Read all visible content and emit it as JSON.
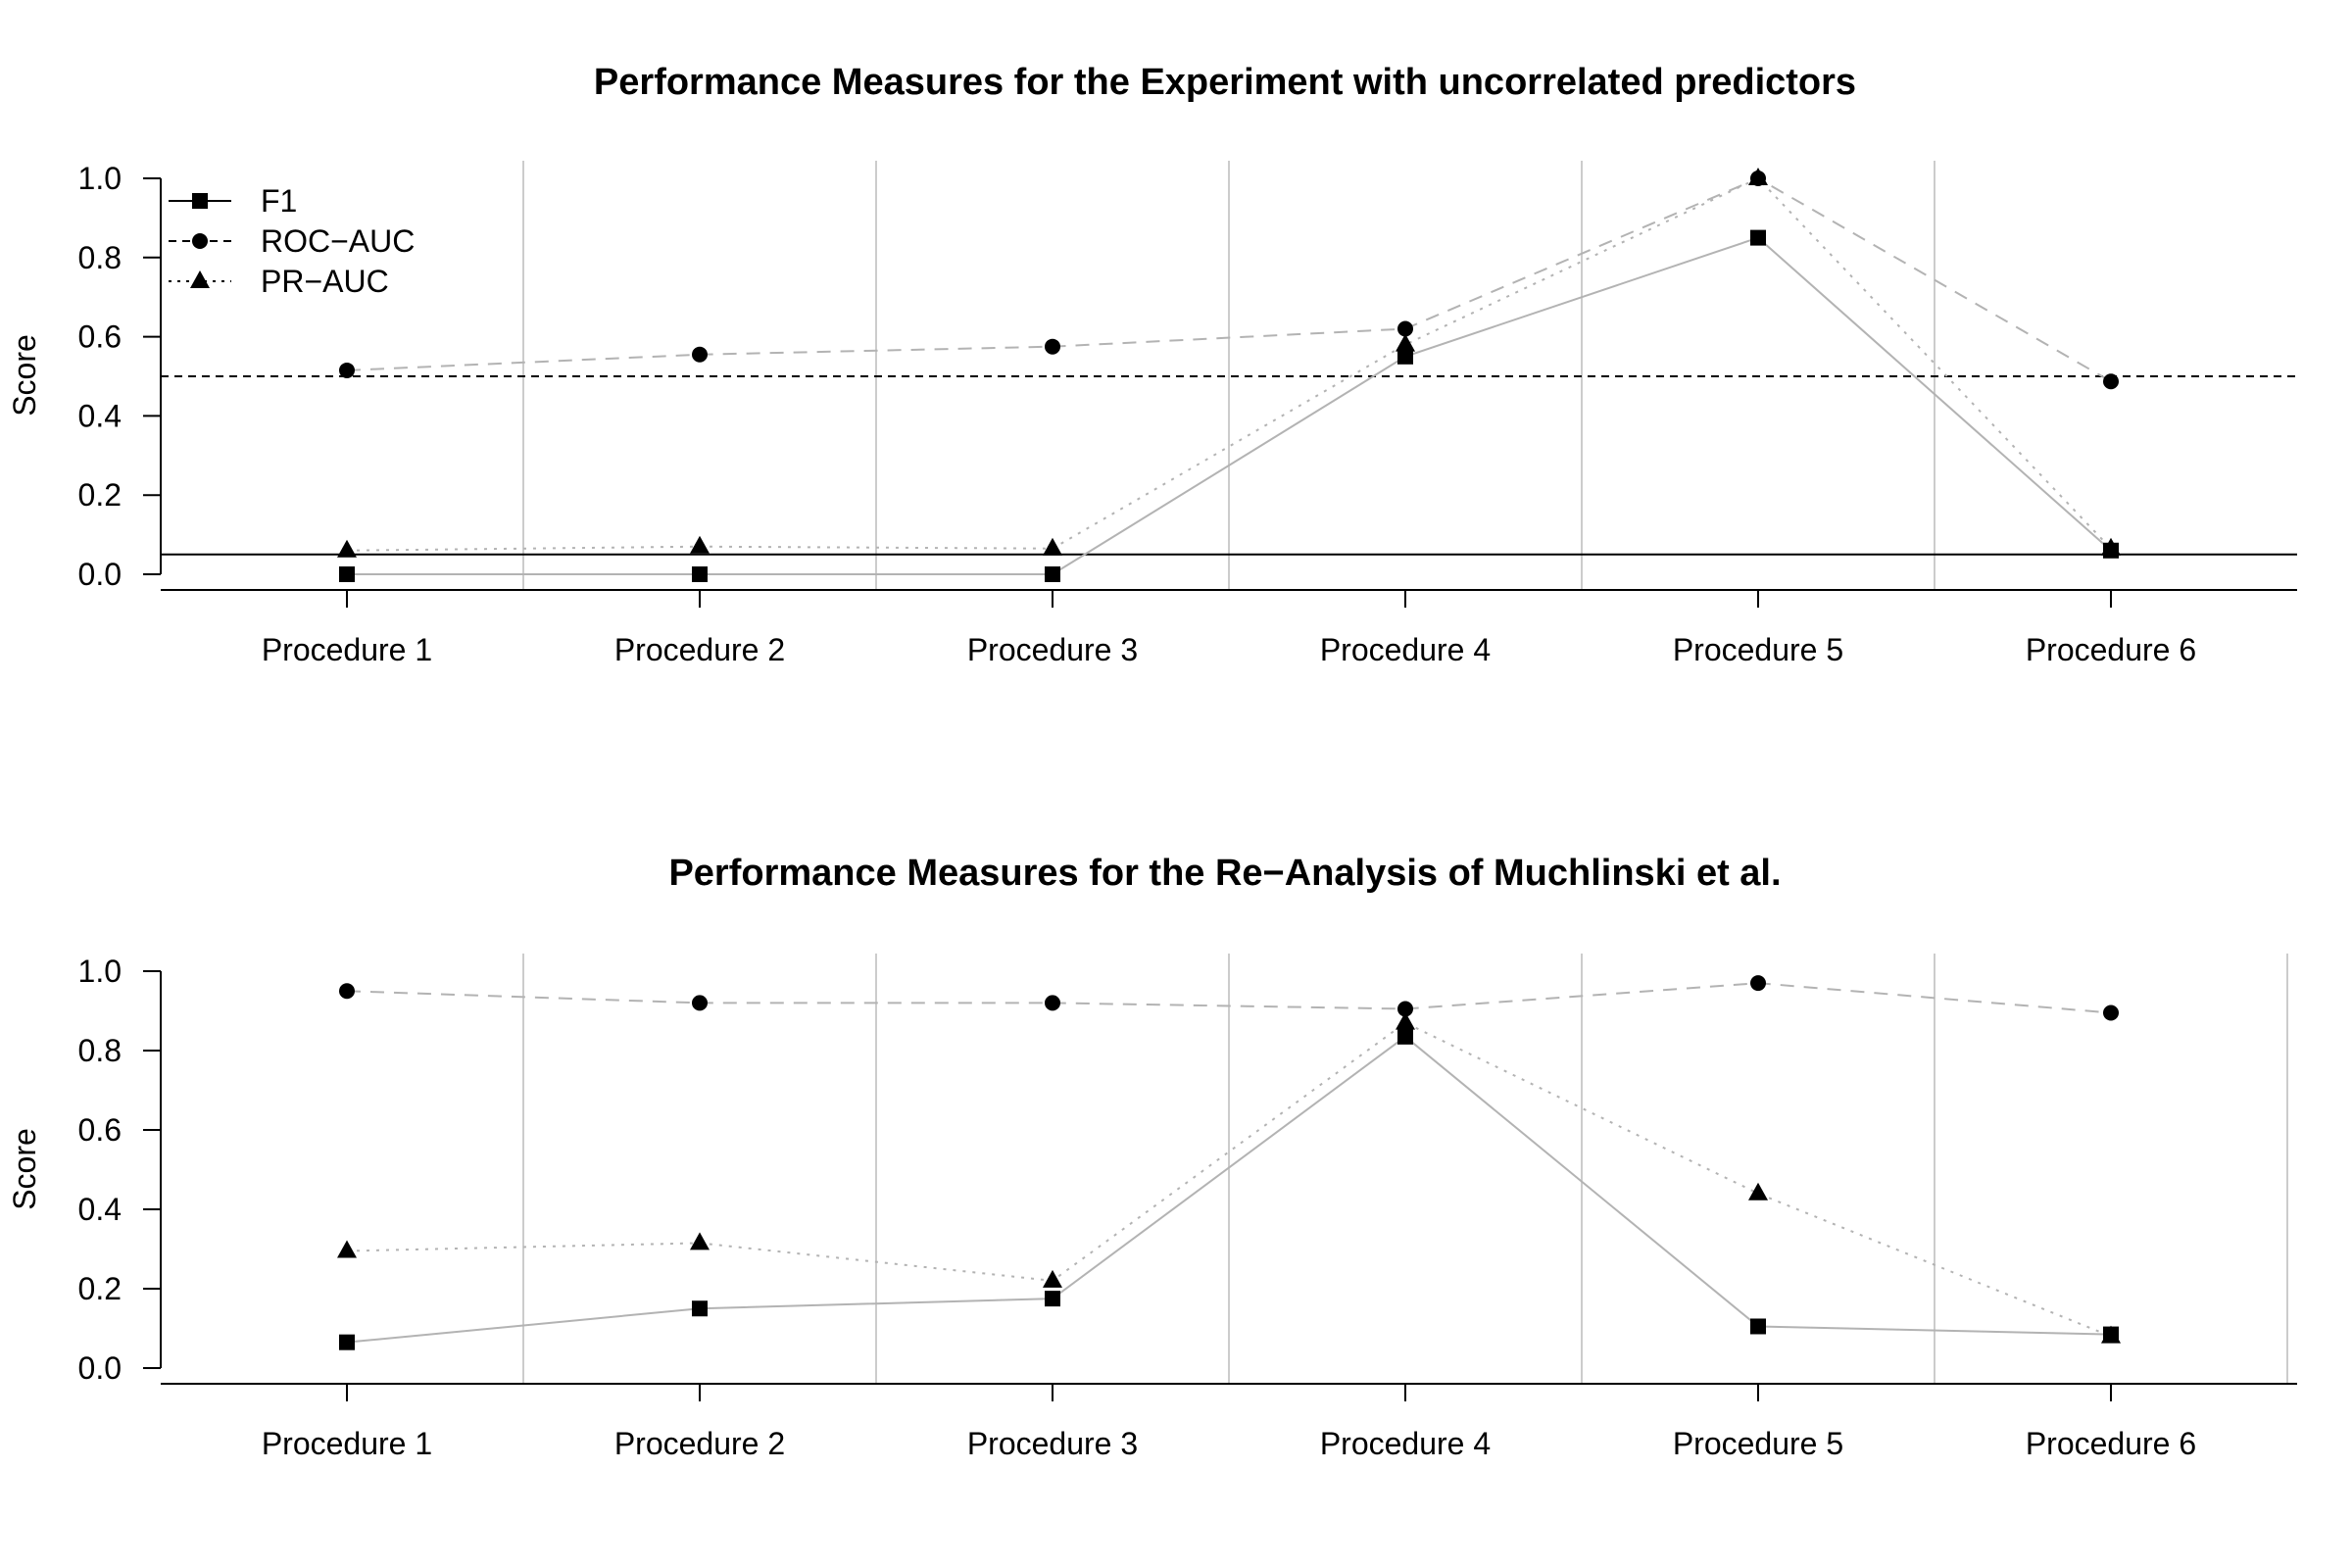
{
  "chart_data": [
    {
      "type": "line",
      "title": "Performance Measures for the Experiment with uncorrelated predictors",
      "xlabel": "",
      "ylabel": "Score",
      "categories": [
        "Procedure 1",
        "Procedure 2",
        "Procedure 3",
        "Procedure 4",
        "Procedure 5",
        "Procedure 6"
      ],
      "ylim": [
        0,
        1
      ],
      "yticks": [
        "0.0",
        "0.2",
        "0.4",
        "0.6",
        "0.8",
        "1.0"
      ],
      "reference_lines": [
        0.5,
        0.05
      ],
      "legend_position": "top-left",
      "series": [
        {
          "name": "F1",
          "marker": "square",
          "line": "solid",
          "values": [
            0.0,
            0.0,
            0.0,
            0.55,
            0.85,
            0.06
          ]
        },
        {
          "name": "ROC−AUC",
          "marker": "circle",
          "line": "dashed",
          "values": [
            0.515,
            0.555,
            0.575,
            0.62,
            1.0,
            0.487
          ]
        },
        {
          "name": "PR−AUC",
          "marker": "triangle",
          "line": "dotted",
          "values": [
            0.06,
            0.07,
            0.065,
            0.58,
            1.0,
            0.065
          ]
        }
      ]
    },
    {
      "type": "line",
      "title": "Performance Measures for the Re−Analysis of Muchlinski et al.",
      "xlabel": "",
      "ylabel": "Score",
      "categories": [
        "Procedure 1",
        "Procedure 2",
        "Procedure 3",
        "Procedure 4",
        "Procedure 5",
        "Procedure 6"
      ],
      "ylim": [
        0,
        1
      ],
      "yticks": [
        "0.0",
        "0.2",
        "0.4",
        "0.6",
        "0.8",
        "1.0"
      ],
      "reference_lines": [],
      "series": [
        {
          "name": "F1",
          "marker": "square",
          "line": "solid",
          "values": [
            0.065,
            0.15,
            0.175,
            0.835,
            0.105,
            0.085
          ]
        },
        {
          "name": "ROC−AUC",
          "marker": "circle",
          "line": "dashed",
          "values": [
            0.95,
            0.92,
            0.92,
            0.905,
            0.97,
            0.895
          ]
        },
        {
          "name": "PR−AUC",
          "marker": "triangle",
          "line": "dotted",
          "values": [
            0.295,
            0.315,
            0.22,
            0.87,
            0.44,
            0.08
          ]
        }
      ]
    }
  ]
}
